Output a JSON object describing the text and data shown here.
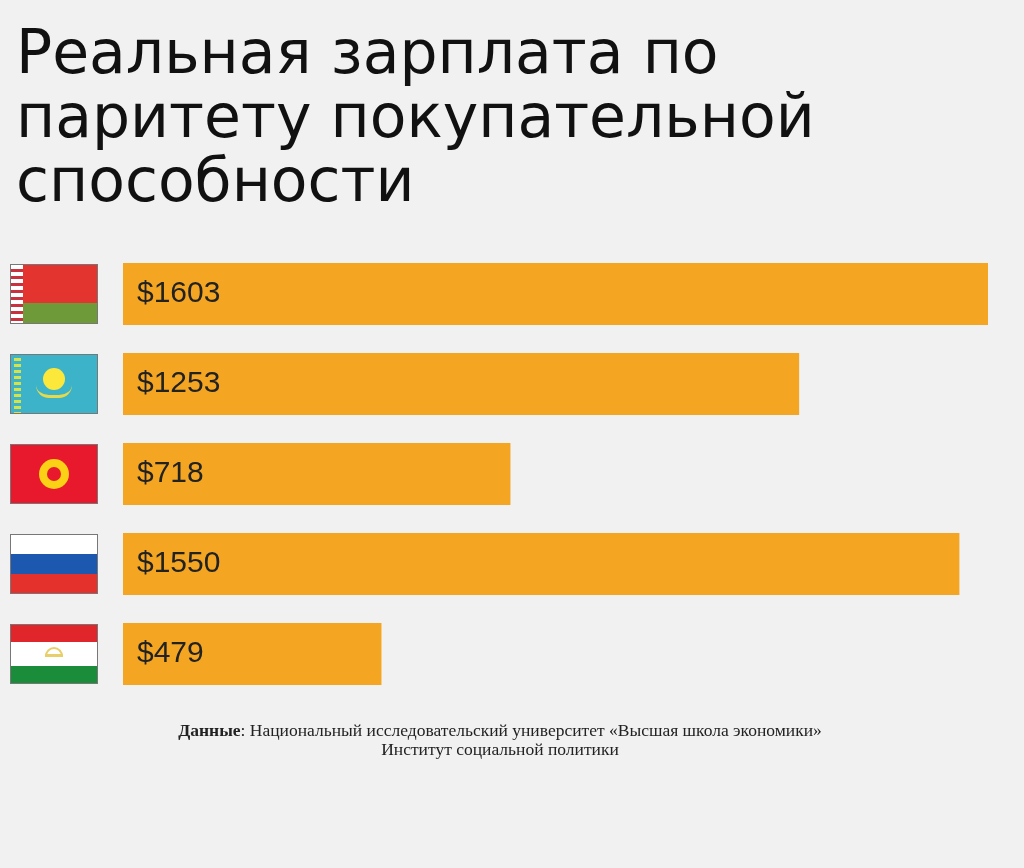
{
  "chart_data": {
    "type": "bar",
    "title": "Реальная зарплата по паритету покупательной способности",
    "orientation": "horizontal",
    "categories": [
      null,
      null,
      null,
      null,
      null
    ],
    "values": [
      1603,
      1253,
      718,
      1550,
      479
    ],
    "color": "#f4a623",
    "value_labels": [
      "$1603",
      "$1253",
      "$718",
      "$1550",
      "$479"
    ],
    "annotations": [
      "Данные: Национальный исследовательский университет «Высшая школа экономики»",
      "Институт социальной политики"
    ],
    "tick_labels": false
  }
}
